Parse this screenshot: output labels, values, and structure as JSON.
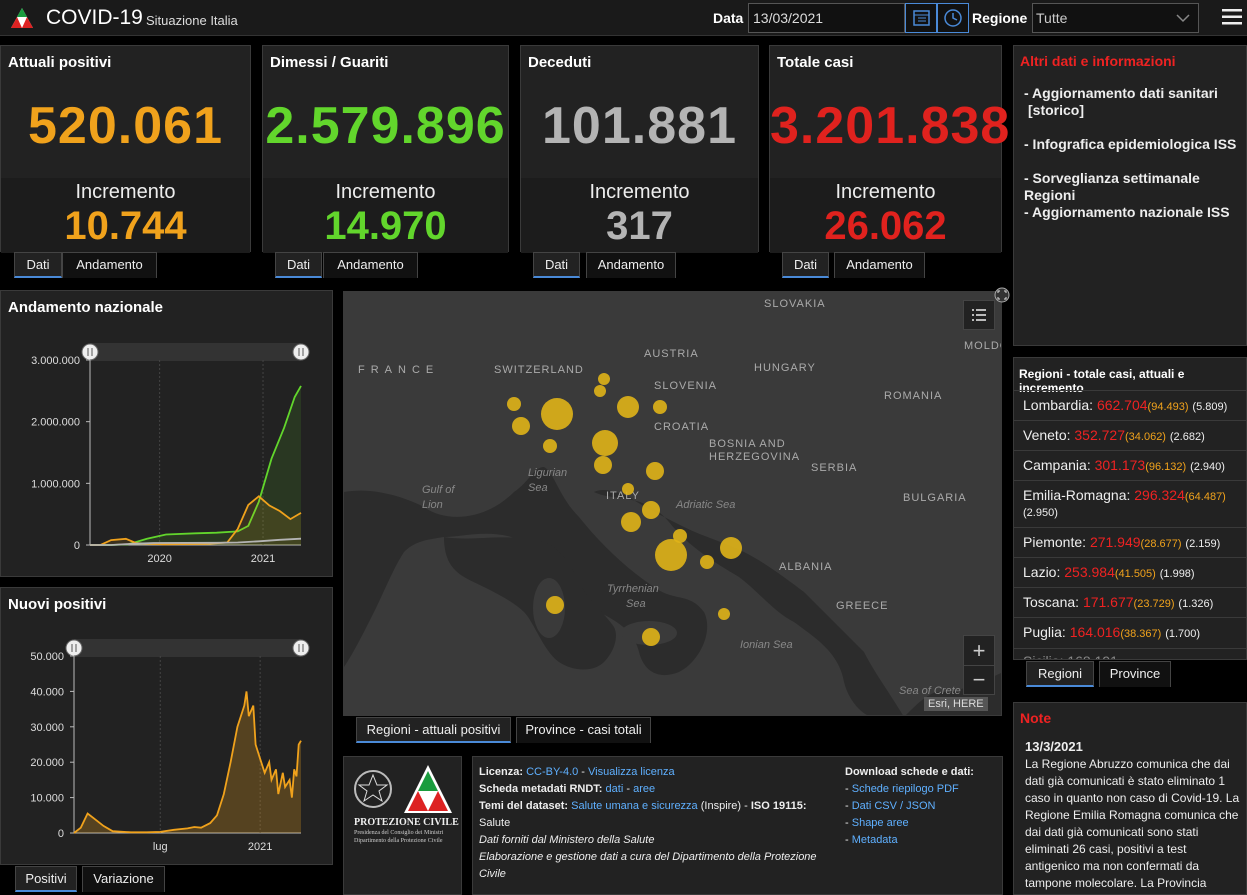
{
  "header": {
    "title": "COVID-19",
    "subtitle": "Situazione Italia",
    "data_label": "Data",
    "date_value": "13/03/2021",
    "regione_label": "Regione",
    "regione_value": "Tutte"
  },
  "cards": [
    {
      "title": "Attuali positivi",
      "value": "520.061",
      "inc_label": "Incremento",
      "inc_value": "10.744",
      "color": "#f0a21c",
      "tab1": "Dati",
      "tab2": "Andamento"
    },
    {
      "title": "Dimessi / Guariti",
      "value": "2.579.896",
      "inc_label": "Incremento",
      "inc_value": "14.970",
      "color": "#62d62c",
      "tab1": "Dati",
      "tab2": "Andamento"
    },
    {
      "title": "Deceduti",
      "value": "101.881",
      "inc_label": "Incremento",
      "inc_value": "317",
      "color": "#b4b4b4",
      "tab1": "Dati",
      "tab2": "Andamento"
    },
    {
      "title": "Totale casi",
      "value": "3.201.838",
      "inc_label": "Incremento",
      "inc_value": "26.062",
      "color": "#e0221e",
      "tab1": "Dati",
      "tab2": "Andamento"
    }
  ],
  "altri": {
    "title": "Altri dati e informazioni",
    "links": [
      "- Aggiornamento dati sanitari",
      "[storico]",
      "- Infografica epidemiologica ISS",
      "- Sorveglianza settimanale Regioni",
      "- Aggiornamento nazionale ISS"
    ]
  },
  "chart_data": [
    {
      "type": "line",
      "title": "Andamento nazionale",
      "ylim": [
        0,
        3000000
      ],
      "y_ticks": [
        "3.000.000",
        "2.000.000",
        "1.000.000",
        "0"
      ],
      "x_ticks": [
        "2020",
        "2021"
      ],
      "series": [
        {
          "color": "#62d62c",
          "points": [
            [
              0,
              0
            ],
            [
              0.1,
              0
            ],
            [
              0.18,
              10000
            ],
            [
              0.27,
              100000
            ],
            [
              0.36,
              170000
            ],
            [
              0.5,
              190000
            ],
            [
              0.6,
              200000
            ],
            [
              0.7,
              220000
            ],
            [
              0.75,
              310000
            ],
            [
              0.8,
              700000
            ],
            [
              0.86,
              1400000
            ],
            [
              0.92,
              1900000
            ],
            [
              0.97,
              2400000
            ],
            [
              1,
              2579896
            ]
          ]
        },
        {
          "color": "#f0a21c",
          "points": [
            [
              0,
              0
            ],
            [
              0.05,
              0
            ],
            [
              0.1,
              80000
            ],
            [
              0.17,
              100000
            ],
            [
              0.22,
              30000
            ],
            [
              0.35,
              10000
            ],
            [
              0.55,
              20000
            ],
            [
              0.65,
              40000
            ],
            [
              0.7,
              260000
            ],
            [
              0.75,
              650000
            ],
            [
              0.8,
              790000
            ],
            [
              0.85,
              640000
            ],
            [
              0.9,
              550000
            ],
            [
              0.95,
              420000
            ],
            [
              1,
              520061
            ]
          ]
        },
        {
          "color": "#b4b4b4",
          "points": [
            [
              0,
              0
            ],
            [
              0.1,
              0
            ],
            [
              0.2,
              20000
            ],
            [
              0.3,
              33000
            ],
            [
              0.6,
              35000
            ],
            [
              0.7,
              40000
            ],
            [
              0.8,
              60000
            ],
            [
              0.9,
              85000
            ],
            [
              1,
              101881
            ]
          ]
        }
      ]
    },
    {
      "type": "area",
      "title": "Nuovi positivi",
      "ylim": [
        0,
        50000
      ],
      "y_ticks": [
        "50.000",
        "40.000",
        "30.000",
        "20.000",
        "10.000",
        "0"
      ],
      "x_ticks": [
        "lug",
        "2021"
      ],
      "series": [
        {
          "color": "#f0a21c",
          "points": [
            [
              0,
              0
            ],
            [
              0.03,
              1500
            ],
            [
              0.06,
              5500
            ],
            [
              0.08,
              4500
            ],
            [
              0.1,
              3500
            ],
            [
              0.13,
              2000
            ],
            [
              0.17,
              500
            ],
            [
              0.25,
              200
            ],
            [
              0.32,
              200
            ],
            [
              0.38,
              300
            ],
            [
              0.44,
              900
            ],
            [
              0.5,
              1300
            ],
            [
              0.53,
              1700
            ],
            [
              0.56,
              1500
            ],
            [
              0.6,
              2800
            ],
            [
              0.63,
              5000
            ],
            [
              0.66,
              11000
            ],
            [
              0.69,
              20000
            ],
            [
              0.72,
              30000
            ],
            [
              0.75,
              36000
            ],
            [
              0.76,
              40000
            ],
            [
              0.77,
              33000
            ],
            [
              0.79,
              36000
            ],
            [
              0.8,
              25000
            ],
            [
              0.82,
              21000
            ],
            [
              0.84,
              17000
            ],
            [
              0.86,
              20000
            ],
            [
              0.87,
              15000
            ],
            [
              0.89,
              18000
            ],
            [
              0.9,
              11000
            ],
            [
              0.92,
              17000
            ],
            [
              0.93,
              13000
            ],
            [
              0.95,
              15000
            ],
            [
              0.96,
              10000
            ],
            [
              0.97,
              18000
            ],
            [
              0.98,
              16000
            ],
            [
              0.99,
              25000
            ],
            [
              1,
              26062
            ]
          ]
        }
      ]
    }
  ],
  "charts_ui": {
    "tab_positivi": "Positivi",
    "tab_variazione": "Variazione"
  },
  "map": {
    "countries": [
      {
        "label": "FRANCE"
      },
      {
        "label": "SWITZERLAND"
      },
      {
        "label": "AUSTRIA"
      },
      {
        "label": "SLOVAKIA"
      },
      {
        "label": "HUNGARY"
      },
      {
        "label": "SLOVENIA"
      },
      {
        "label": "CROATIA"
      },
      {
        "label": "ROMANIA"
      },
      {
        "label": "BOSNIA AND"
      },
      {
        "label": "HERZEGOVINA"
      },
      {
        "label": "SERBIA"
      },
      {
        "label": "BULGARIA"
      },
      {
        "label": "ITALY"
      },
      {
        "label": "ALBANIA"
      },
      {
        "label": "GREECE"
      },
      {
        "label": "MOLDO"
      }
    ],
    "seas": [
      {
        "label": "Ligurian"
      },
      {
        "label": "Sea"
      },
      {
        "label": "Gulf of"
      },
      {
        "label": "Lion"
      },
      {
        "label": "Adriatic Sea"
      },
      {
        "label": "Tyrrhenian"
      },
      {
        "label": "Sea"
      },
      {
        "label": "Ionian Sea"
      },
      {
        "label": "Sea of Crete"
      }
    ],
    "attribution": "Esri, HERE",
    "zoom_in": "+",
    "zoom_out": "−",
    "tab1": "Regioni - attuali positivi",
    "tab2": "Province - casi totali"
  },
  "regioni": {
    "title": "Regioni - totale casi, attuali e incremento",
    "rows": [
      {
        "name": "Lombardia:",
        "total": "662.704",
        "current": "(94.493)",
        "inc": "(5.809)"
      },
      {
        "name": "Veneto:",
        "total": "352.727",
        "current": "(34.062)",
        "inc": "(2.682)"
      },
      {
        "name": "Campania:",
        "total": "301.173",
        "current": "(96.132)",
        "inc": "(2.940)"
      },
      {
        "name": "Emilia-Romagna:",
        "total": "296.324",
        "current": "(64.487)",
        "inc": "(2.950)"
      },
      {
        "name": "Piemonte:",
        "total": "271.949",
        "current": "(28.677)",
        "inc": "(2.159)"
      },
      {
        "name": "Lazio:",
        "total": "253.984",
        "current": "(41.505)",
        "inc": "(1.998)"
      },
      {
        "name": "Toscana:",
        "total": "171.677",
        "current": "(23.729)",
        "inc": "(1.326)"
      },
      {
        "name": "Puglia:",
        "total": "164.016",
        "current": "(38.367)",
        "inc": "(1.700)"
      }
    ],
    "tab1": "Regioni",
    "tab2": "Province"
  },
  "note": {
    "title": "Note",
    "date": "13/3/2021",
    "text": "La Regione Abruzzo comunica che dai dati già comunicati è stato eliminato 1 caso in quanto non caso di Covid-19. La Regione Emilia Romagna comunica che dai dati già comunicati sono stati eliminati 26 casi, positivi a test antigenico ma non confermati da tampone molecolare. La Provincia"
  },
  "footer": {
    "logo_line1": "PROTEZIONE CIVILE",
    "logo_line2": "Presidenza del Consiglio dei Ministri",
    "logo_line3": "Dipartimento della Protezione Civile",
    "licenza_label": "Licenza:",
    "licenza_link": "CC-BY-4.0",
    "licenza_sep": " - ",
    "licenza_link2": "Visualizza licenza",
    "scheda_label": "Scheda metadati RNDT:",
    "scheda_link1": "dati",
    "scheda_link2": "aree",
    "temi_label": "Temi del dataset:",
    "temi_link": "Salute umana e sicurezza",
    "temi_rest": " (Inspire) - ",
    "iso_label": "ISO 19115:",
    "temi_line2": "Salute",
    "fonte": "Dati forniti dal Ministero della Salute",
    "elab": "Elaborazione e gestione dati a cura del Dipartimento della Protezione Civile",
    "download_title": "Download schede e dati:",
    "downloads": [
      "Schede riepilogo PDF",
      "Dati CSV / JSON",
      "Shape aree",
      "Metadata"
    ]
  }
}
